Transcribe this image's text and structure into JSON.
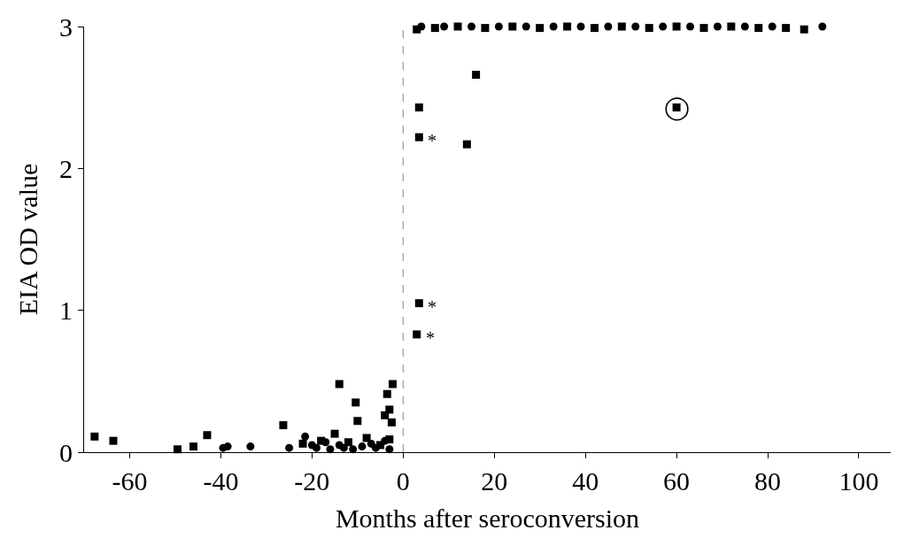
{
  "chart_data": {
    "type": "scatter",
    "xlabel": "Months after seroconversion",
    "ylabel": "EIA OD value",
    "xlim": [
      -70,
      107
    ],
    "xticks": [
      -60,
      -40,
      -20,
      0,
      20,
      40,
      60,
      80,
      100
    ],
    "ylim": [
      0,
      3
    ],
    "yticks": [
      0,
      1,
      2,
      3
    ],
    "grid": false,
    "series": [
      {
        "color": "#000000",
        "marker": "square",
        "x": [
          -67.7,
          -63.6,
          -49.5,
          -46,
          -43,
          -26.3,
          -14,
          -10.4,
          -10,
          -2.3,
          -3.5,
          -3,
          -4,
          -2.5,
          -22,
          -18,
          -15,
          -12,
          -8,
          -5,
          -3,
          3.5,
          3.5,
          3.5,
          3,
          16,
          14,
          60,
          3,
          7,
          12,
          18,
          24,
          30,
          36,
          42,
          48,
          54,
          60,
          66,
          72,
          78,
          84,
          88
        ],
        "values": [
          0.11,
          0.08,
          0.02,
          0.04,
          0.12,
          0.19,
          0.48,
          0.35,
          0.22,
          0.48,
          0.41,
          0.3,
          0.26,
          0.21,
          0.06,
          0.08,
          0.13,
          0.07,
          0.1,
          0.05,
          0.09,
          2.43,
          2.22,
          1.05,
          0.83,
          2.66,
          2.17,
          2.43,
          2.98,
          2.99,
          3.0,
          2.99,
          3.0,
          2.99,
          3.0,
          2.99,
          3.0,
          2.99,
          3.0,
          2.99,
          3.0,
          2.99,
          2.99,
          2.98
        ]
      },
      {
        "color": "#000000",
        "marker": "circle",
        "x": [
          -39.5,
          -38.5,
          -33.5,
          -25,
          -21.5,
          -20,
          -19,
          -17,
          -16,
          -14,
          -13,
          -11,
          -9,
          -7,
          -6,
          -4,
          -3,
          4,
          9,
          15,
          21,
          27,
          33,
          39,
          45,
          51,
          57,
          63,
          69,
          75,
          81,
          92
        ],
        "values": [
          0.03,
          0.04,
          0.04,
          0.03,
          0.11,
          0.05,
          0.03,
          0.07,
          0.02,
          0.05,
          0.03,
          0.02,
          0.04,
          0.06,
          0.03,
          0.08,
          0.02,
          3.0,
          3.0,
          3.0,
          3.0,
          3.0,
          3.0,
          3.0,
          3.0,
          3.0,
          3.0,
          3.0,
          3.0,
          3.0,
          3.0,
          3.0
        ]
      }
    ],
    "ref_lines": [
      {
        "axis": "x",
        "value": 0,
        "color": "#888888",
        "line_style": "dashed"
      }
    ],
    "annotations": [
      {
        "text": "*",
        "x": 3.5,
        "y": 2.22
      },
      {
        "text": "*",
        "x": 3.5,
        "y": 1.05
      },
      {
        "text": "*",
        "x": 3,
        "y": 0.83
      },
      {
        "text": "◯",
        "x": 60,
        "y": 2.43
      }
    ]
  }
}
